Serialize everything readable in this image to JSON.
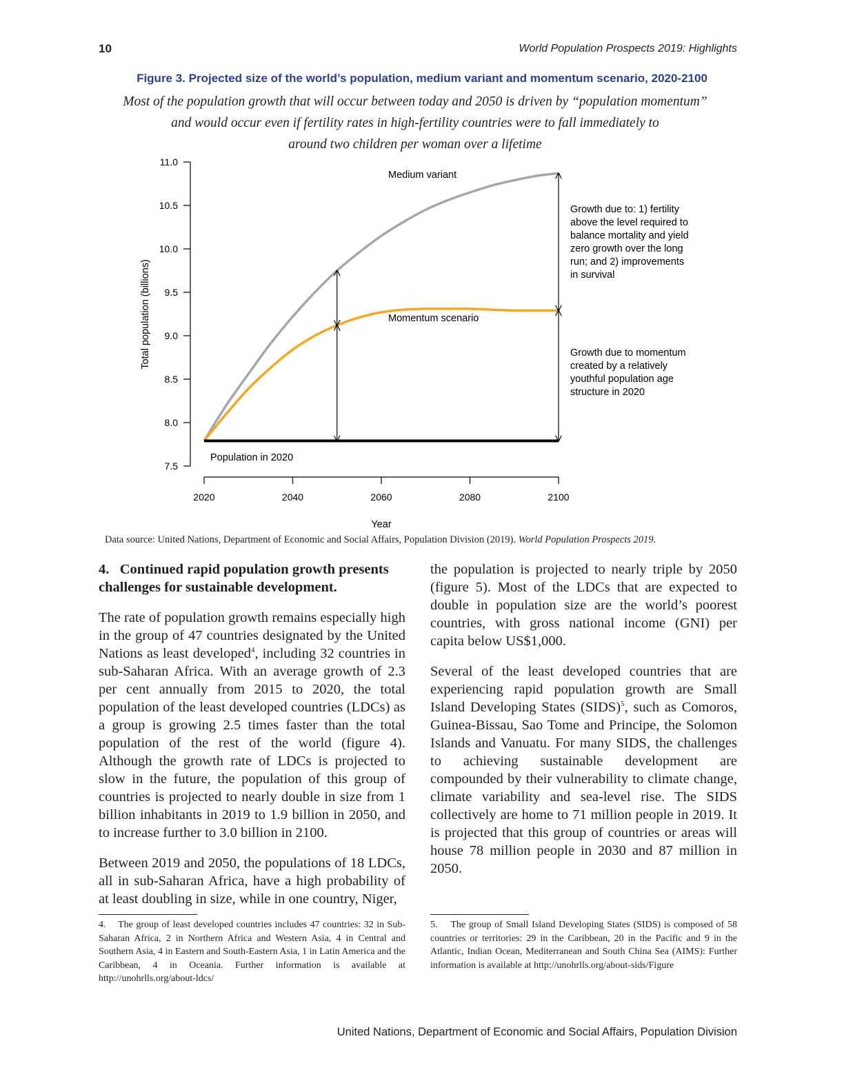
{
  "page": {
    "number": "10",
    "running_header": "World Population Prospects 2019: Highlights",
    "footer": "United Nations, Department of Economic and Social Affairs, Population Division"
  },
  "figure": {
    "title": "Figure 3. Projected size of the world’s population, medium variant and momentum scenario, 2020-2100",
    "subtitle_lines": [
      "Most of the population growth that will occur between today and 2050 is driven by “population momentum”",
      "and would occur even if fertility rates in high-fertility countries were to fall immediately to",
      "around two children per woman over a lifetime"
    ],
    "data_source_prefix": "Data source: United Nations, Department of Economic and Social Affairs, Population Division (2019). ",
    "data_source_title": "World Population Prospects 2019."
  },
  "chart_data": {
    "type": "line",
    "xlabel": "Year",
    "ylabel": "Total population (billions)",
    "xlim": [
      2020,
      2100
    ],
    "ylim": [
      7.5,
      11.0
    ],
    "x_ticks": [
      "2020",
      "2040",
      "2060",
      "2080",
      "2100"
    ],
    "y_ticks": [
      "7.5",
      "8.0",
      "8.5",
      "9.0",
      "9.5",
      "10.0",
      "10.5",
      "11.0"
    ],
    "series": [
      {
        "name": "Medium variant",
        "color": "#a6a6a6",
        "x": [
          2020,
          2025,
          2030,
          2035,
          2040,
          2045,
          2050,
          2055,
          2060,
          2065,
          2070,
          2075,
          2080,
          2085,
          2090,
          2095,
          2100
        ],
        "values": [
          7.79,
          8.2,
          8.56,
          8.91,
          9.22,
          9.5,
          9.75,
          9.96,
          10.15,
          10.31,
          10.45,
          10.56,
          10.65,
          10.73,
          10.79,
          10.84,
          10.87
        ]
      },
      {
        "name": "Momentum scenario",
        "color": "#f5a623",
        "x": [
          2020,
          2025,
          2030,
          2035,
          2040,
          2045,
          2050,
          2055,
          2060,
          2065,
          2070,
          2075,
          2080,
          2085,
          2090,
          2095,
          2100
        ],
        "values": [
          7.79,
          8.1,
          8.39,
          8.63,
          8.84,
          9.0,
          9.12,
          9.21,
          9.27,
          9.3,
          9.31,
          9.31,
          9.31,
          9.3,
          9.29,
          9.29,
          9.29
        ]
      },
      {
        "name": "Population in 2020",
        "color": "#000000",
        "x": [
          2020,
          2100
        ],
        "values": [
          7.79,
          7.79
        ]
      }
    ],
    "annotations": {
      "medium_label": "Medium variant",
      "momentum_label": "Momentum scenario",
      "baseline_label": "Population in 2020",
      "growth_fertility": [
        "Growth due to: 1) fertility",
        "above the level required to",
        "balance mortality and yield",
        "zero growth over the long",
        "run; and 2) improvements",
        "in survival"
      ],
      "growth_momentum": [
        "Growth due to momentum",
        "created by a relatively",
        "youthful population age",
        "structure in 2020"
      ]
    },
    "arrows_at_years": [
      2050,
      2100
    ]
  },
  "body": {
    "heading_line1": "4.   Continued rapid population growth presents",
    "heading_line2": "challenges for sustainable development.",
    "p1_a": "The rate of population growth remains especially high in the group of 47 countries designated by the United Nations as least developed",
    "p1_sup": "4",
    "p1_b": ", including 32 countries in sub-Saharan Africa. With an average growth of 2.3 per cent annually from 2015 to 2020, the total population of the least developed countries (LDCs) as a group is growing 2.5 times faster than the total population of the rest of the world (figure 4). Although the growth rate of LDCs is projected to slow in the future, the population of this group of countries is projected to nearly double in size from 1 billion inhabitants in 2019 to 1.9 billion in 2050, and to increase further to 3.0 billion in 2100.",
    "p2": "Between 2019 and 2050, the populations of 18 LDCs, all in sub-Saharan Africa, have a high probability of at least doubling in size, while in one country, Niger,",
    "p3": "the population is projected to nearly triple by 2050 (figure 5). Most of the LDCs that are expected to double in population size are the world’s poorest countries, with gross national income (GNI) per capita below US$1,000.",
    "p4_a": "Several of the least developed countries that are experiencing rapid population growth are Small Island Developing States (SIDS)",
    "p4_sup": "5",
    "p4_b": ", such as Comoros, Guinea-Bissau, Sao Tome and Principe, the Solomon Islands and Vanuatu. For many SIDS, the challenges to achieving sustainable development are compounded by their vulnerability to climate change, climate variability and sea-level rise. The SIDS collectively are home to 71 million people in 2019. It is projected that this group of countries or areas will house 78 million people in 2030 and 87 million in 2050."
  },
  "footnotes": {
    "fn4": "4.    The group of least developed countries includes 47 countries: 32 in Sub-Saharan Africa, 2 in Northern Africa and Western Asia, 4 in Central and Southern Asia, 4 in Eastern and South-Eastern Asia, 1 in Latin America and the Caribbean, 4 in Oceania. Further information is available at http://unohrlls.org/about-ldcs/",
    "fn5": "5.    The group of Small Island Developing States (SIDS) is composed of 58 countries or territories: 29 in the Caribbean, 20 in the Pacific and 9 in the Atlantic, Indian Ocean, Mediterranean and South China Sea (AIMS): Further information is available at http://unohrlls.org/about-sids/Figure"
  }
}
